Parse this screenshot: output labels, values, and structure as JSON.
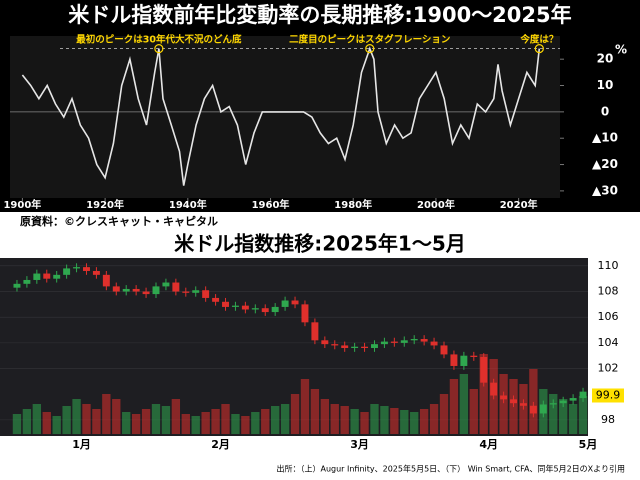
{
  "chart_data": [
    {
      "type": "line",
      "title": "米ドル指数前年比変動率の長期推移:1900～2025年",
      "unit_label": "%",
      "source": "原資料：©クレスキャット・キャピタル",
      "x": [
        1900,
        1902,
        1904,
        1906,
        1908,
        1910,
        1912,
        1914,
        1916,
        1918,
        1920,
        1922,
        1924,
        1926,
        1928,
        1930,
        1932,
        1933,
        1934,
        1936,
        1938,
        1939,
        1940,
        1942,
        1944,
        1946,
        1948,
        1950,
        1952,
        1954,
        1956,
        1958,
        1960,
        1962,
        1964,
        1966,
        1968,
        1970,
        1972,
        1974,
        1976,
        1978,
        1980,
        1982,
        1984,
        1985,
        1986,
        1988,
        1990,
        1992,
        1994,
        1996,
        1998,
        2000,
        2002,
        2004,
        2006,
        2008,
        2010,
        2012,
        2014,
        2015,
        2016,
        2018,
        2020,
        2022,
        2024,
        2025
      ],
      "series": [
        {
          "color": "#e6e6e6",
          "values": [
            14,
            10,
            5,
            10,
            3,
            -2,
            5,
            -5,
            -10,
            -20,
            -25,
            -12,
            10,
            20,
            5,
            -5,
            15,
            24,
            5,
            -5,
            -15,
            -28,
            -20,
            -5,
            5,
            10,
            0,
            2,
            -5,
            -20,
            -8,
            0,
            0,
            0,
            0,
            0,
            0,
            -2,
            -8,
            -12,
            -10,
            -18,
            -5,
            15,
            24,
            20,
            0,
            -12,
            -5,
            -10,
            -8,
            5,
            10,
            15,
            5,
            -12,
            -5,
            -10,
            3,
            0,
            5,
            18,
            8,
            -5,
            5,
            15,
            10,
            24
          ]
        }
      ],
      "xlim": [
        1897,
        2030
      ],
      "xticks": [
        {
          "value": 1900,
          "label": "1900年"
        },
        {
          "value": 1920,
          "label": "1920年"
        },
        {
          "value": 1940,
          "label": "1940年"
        },
        {
          "value": 1960,
          "label": "1960年"
        },
        {
          "value": 1980,
          "label": "1980年"
        },
        {
          "value": 2000,
          "label": "2000年"
        },
        {
          "value": 2020,
          "label": "2020年"
        }
      ],
      "ylim": [
        -32.7,
        28.8
      ],
      "yticks": [
        20,
        10,
        0,
        {
          "value": -10,
          "label": "▲10"
        },
        {
          "value": -20,
          "label": "▲20"
        },
        {
          "value": -30,
          "label": "▲30"
        }
      ],
      "reference_line": 24,
      "annotations": [
        {
          "text": "最初のピークは30年代大不況のどん底",
          "x": 1933,
          "y": 24
        },
        {
          "text": "二度目のピークはスタグフレーション",
          "x": 1984,
          "y": 24
        },
        {
          "text": "今度は？",
          "x": 2025,
          "y": 24
        }
      ],
      "annotation_color": "#ffd700"
    },
    {
      "type": "candlestick",
      "title": "米ドル指数推移:2025年1～5月",
      "note": "出所：（上）Augur Infinity、2025年5月5日、（下） Win Smart, CFA、同年5月2日のXより引用",
      "categories": [
        null,
        null,
        null,
        null,
        null,
        null,
        null,
        null,
        null,
        null,
        null,
        null,
        null,
        null,
        null,
        null,
        null,
        null,
        null,
        null,
        null,
        null,
        null,
        null,
        null,
        null,
        null,
        null,
        null,
        null,
        null,
        null,
        null,
        null,
        null,
        null,
        null,
        null,
        null,
        null,
        null,
        null,
        null,
        null,
        null,
        null,
        null,
        null,
        null,
        null,
        null,
        null,
        null,
        null,
        null,
        null,
        null,
        null
      ],
      "open": [
        108.3,
        108.6,
        108.9,
        109.4,
        109.0,
        109.3,
        109.8,
        109.9,
        109.6,
        109.3,
        108.4,
        108.0,
        108.2,
        108.0,
        107.8,
        108.4,
        108.7,
        108.0,
        107.9,
        108.1,
        107.5,
        107.2,
        106.8,
        106.9,
        106.6,
        106.7,
        106.4,
        106.8,
        107.3,
        107.0,
        105.6,
        104.2,
        103.9,
        103.8,
        103.6,
        103.7,
        103.6,
        103.9,
        104.1,
        104.0,
        104.2,
        104.3,
        104.1,
        103.8,
        103.1,
        102.2,
        103.0,
        102.9,
        100.9,
        99.9,
        99.6,
        99.3,
        99.1,
        98.5,
        99.2,
        99.3,
        99.5,
        99.7
      ],
      "high": [
        108.9,
        109.2,
        109.7,
        109.7,
        109.6,
        110.1,
        110.2,
        110.2,
        109.9,
        109.6,
        108.7,
        108.5,
        108.5,
        108.3,
        108.7,
        109.0,
        109.0,
        108.3,
        108.4,
        108.4,
        107.8,
        107.5,
        107.2,
        107.2,
        107.0,
        107.0,
        107.1,
        107.6,
        107.6,
        107.3,
        105.9,
        104.5,
        104.2,
        104.1,
        104.0,
        104.0,
        104.2,
        104.4,
        104.4,
        104.5,
        104.6,
        104.6,
        104.4,
        104.1,
        103.4,
        103.3,
        103.3,
        103.2,
        101.2,
        100.2,
        99.9,
        99.6,
        99.4,
        99.5,
        99.6,
        99.8,
        100.0,
        100.5
      ],
      "low": [
        108.0,
        108.3,
        108.6,
        108.7,
        108.7,
        109.0,
        109.5,
        109.3,
        109.0,
        108.1,
        107.7,
        107.7,
        107.7,
        107.5,
        107.5,
        108.1,
        107.7,
        107.6,
        107.6,
        107.2,
        106.9,
        106.5,
        106.5,
        106.3,
        106.3,
        106.1,
        106.1,
        106.5,
        106.7,
        105.3,
        103.9,
        103.6,
        103.5,
        103.3,
        103.3,
        103.3,
        103.3,
        103.6,
        103.7,
        103.7,
        103.9,
        103.8,
        103.5,
        102.8,
        101.9,
        101.9,
        102.6,
        100.6,
        99.6,
        99.3,
        99.0,
        98.8,
        98.2,
        98.2,
        98.9,
        99.0,
        99.2,
        99.4
      ],
      "close": [
        108.6,
        108.9,
        109.4,
        109.0,
        109.3,
        109.8,
        109.9,
        109.6,
        109.3,
        108.4,
        108.0,
        108.2,
        108.0,
        107.8,
        108.4,
        108.7,
        108.0,
        107.9,
        108.1,
        107.5,
        107.2,
        106.8,
        106.9,
        106.6,
        106.7,
        106.4,
        106.8,
        107.3,
        107.0,
        105.6,
        104.2,
        103.9,
        103.8,
        103.6,
        103.7,
        103.6,
        103.9,
        104.1,
        104.0,
        104.2,
        104.3,
        104.1,
        103.8,
        103.1,
        102.2,
        103.0,
        102.9,
        100.9,
        99.9,
        99.6,
        99.3,
        99.1,
        98.5,
        99.2,
        99.3,
        99.5,
        99.7,
        100.2
      ],
      "volume": [
        20,
        25,
        30,
        22,
        18,
        28,
        35,
        30,
        25,
        40,
        35,
        22,
        20,
        25,
        30,
        28,
        35,
        20,
        18,
        22,
        25,
        30,
        20,
        18,
        22,
        25,
        28,
        30,
        40,
        55,
        45,
        35,
        30,
        28,
        25,
        22,
        30,
        28,
        26,
        24,
        22,
        25,
        30,
        40,
        55,
        60,
        45,
        80,
        75,
        60,
        55,
        50,
        65,
        45,
        40,
        35,
        30,
        38
      ],
      "volume_lim": [
        0,
        100
      ],
      "up_color": "#2fa84f",
      "down_color": "#e0302c",
      "ylim": [
        96.9,
        110.3
      ],
      "yticks": [
        98,
        102,
        104,
        106,
        108,
        110
      ],
      "current_value": 99.9,
      "xticks": [
        {
          "value": 7,
          "label": "1月"
        },
        {
          "value": 21,
          "label": "2月"
        },
        {
          "value": 35,
          "label": "3月"
        },
        {
          "value": 48,
          "label": "4月"
        },
        {
          "value": 58,
          "label": "5月"
        }
      ],
      "grid": true
    }
  ]
}
